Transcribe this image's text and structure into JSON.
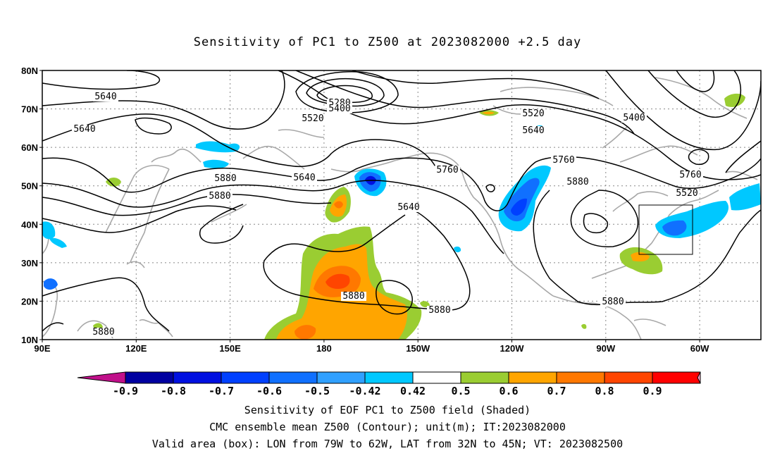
{
  "title": "Sensitivity of PC1 to Z500 at 2023082000 +2.5 day",
  "map": {
    "lat_ticks": [
      "80N",
      "70N",
      "60N",
      "50N",
      "40N",
      "30N",
      "20N",
      "10N"
    ],
    "lon_ticks": [
      "90E",
      "120E",
      "150E",
      "180",
      "150W",
      "120W",
      "90W",
      "60W"
    ],
    "contour_labels": [
      "5640",
      "5640",
      "5280",
      "5400",
      "5520",
      "5520",
      "5640",
      "5400",
      "5760",
      "5640",
      "5880",
      "5760",
      "5760",
      "5880",
      "5880",
      "5520",
      "5640",
      "5880",
      "5880",
      "5880",
      "5880"
    ],
    "box": {
      "label": "Valid area (box)",
      "lon_from": "79W",
      "lon_to": "62W",
      "lat_from": "32N",
      "lat_to": "45N"
    }
  },
  "colorbar": {
    "labels": [
      "-0.9",
      "-0.8",
      "-0.7",
      "-0.6",
      "-0.5",
      "-0.42",
      "0.42",
      "0.5",
      "0.6",
      "0.7",
      "0.8",
      "0.9"
    ],
    "colors": [
      "#0000a0",
      "#0010e0",
      "#0040ff",
      "#1070ff",
      "#30a0ff",
      "#00c8ff",
      "#ffffff",
      "#9acd32",
      "#ffa500",
      "#ff7800",
      "#ff4500",
      "#ff0000"
    ],
    "low_color": "#c0108a",
    "high_color": "#ffa0c8"
  },
  "captions": {
    "line1": "Sensitivity of EOF PC1 to Z500 field (Shaded)",
    "line2": "CMC ensemble mean Z500 (Contour); unit(m); IT:2023082000",
    "line3": "Valid area (box): LON from 79W to 62W, LAT from 32N to 45N; VT: 2023082500"
  }
}
